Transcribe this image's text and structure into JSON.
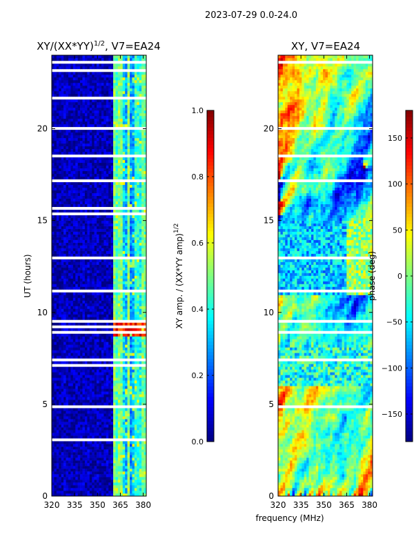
{
  "figure": {
    "suptitle": "2023-07-29 0.0-24.0",
    "xlabel": "frequency (MHz)"
  },
  "chart_data": [
    {
      "type": "heatmap",
      "title_prefix": "XY/(XX*YY)",
      "title_sup": "1/2",
      "title_suffix": ", V7=EA24",
      "xlabel": "",
      "ylabel": "UT (hours)",
      "xlim": [
        320,
        382
      ],
      "ylim": [
        0,
        24
      ],
      "xticks": [
        320,
        335,
        350,
        365,
        380
      ],
      "yticks": [
        0,
        5,
        10,
        15,
        20
      ],
      "colorbar": {
        "label_prefix": "XY amp. / (XX*YY amp)",
        "label_sup": "1/2",
        "range": [
          0.0,
          1.0
        ],
        "ticks": [
          "0.0",
          "0.2",
          "0.4",
          "0.6",
          "0.8",
          "1.0"
        ],
        "tick_values": [
          0.0,
          0.2,
          0.4,
          0.6,
          0.8,
          1.0
        ]
      },
      "band_features": {
        "active_channel_start_mhz": 360,
        "high_value_period_hours": [
          8.7,
          9.6
        ]
      }
    },
    {
      "type": "heatmap",
      "title": "XY, V7=EA24",
      "xlabel": "",
      "ylabel": "",
      "xlim": [
        320,
        382
      ],
      "ylim": [
        0,
        24
      ],
      "xticks": [
        320,
        335,
        350,
        365,
        380
      ],
      "yticks": [
        0,
        5,
        10,
        15,
        20
      ],
      "colorbar": {
        "label": "phase (deg)",
        "range": [
          -180,
          180
        ],
        "ticks": [
          "150",
          "100",
          "50",
          "0",
          "−50",
          "−100",
          "−150"
        ],
        "tick_values": [
          150,
          100,
          50,
          0,
          -50,
          -100,
          -150
        ]
      }
    }
  ],
  "colors": {
    "jet_low": "#00007f",
    "jet_high": "#7f0000",
    "gap": "#ffffff"
  }
}
